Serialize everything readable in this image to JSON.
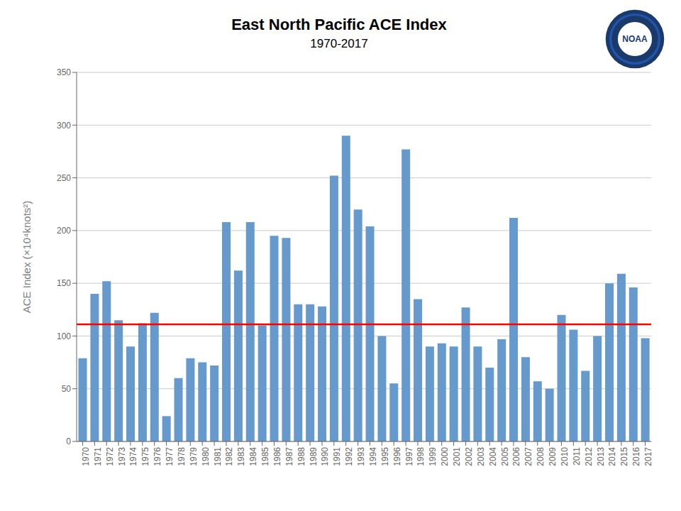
{
  "chart_data": {
    "type": "bar",
    "title": "East North Pacific ACE Index",
    "subtitle": "1970-2017",
    "ylabel": "ACE Index (×10⁴knots²)",
    "categories": [
      "1970",
      "1971",
      "1972",
      "1973",
      "1974",
      "1975",
      "1976",
      "1977",
      "1978",
      "1979",
      "1980",
      "1981",
      "1982",
      "1983",
      "1984",
      "1985",
      "1986",
      "1987",
      "1988",
      "1989",
      "1990",
      "1991",
      "1992",
      "1993",
      "1994",
      "1995",
      "1996",
      "1997",
      "1998",
      "1999",
      "2000",
      "2001",
      "2002",
      "2003",
      "2004",
      "2005",
      "2006",
      "2007",
      "2008",
      "2009",
      "2010",
      "2011",
      "2012",
      "2013",
      "2014",
      "2015",
      "2016",
      "2017"
    ],
    "values": [
      79,
      140,
      152,
      115,
      90,
      112,
      122,
      24,
      60,
      79,
      75,
      72,
      208,
      162,
      208,
      110,
      195,
      193,
      130,
      130,
      128,
      252,
      290,
      220,
      204,
      100,
      55,
      277,
      135,
      90,
      93,
      90,
      127,
      90,
      70,
      97,
      212,
      80,
      57,
      50,
      120,
      106,
      67,
      100,
      150,
      159,
      146,
      98
    ],
    "color": "#6699CC",
    "mean_line": {
      "value": 111,
      "color": "red"
    },
    "ylim": [
      0,
      350
    ],
    "yticks": [
      0,
      50,
      100,
      150,
      200,
      250,
      300,
      350
    ],
    "grid": true,
    "annotations": [
      "NOAA"
    ]
  }
}
